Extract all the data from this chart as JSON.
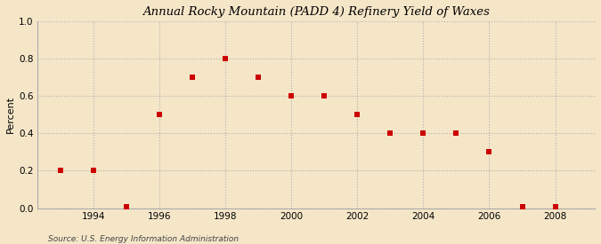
{
  "title": "Annual Rocky Mountain (PADD 4) Refinery Yield of Waxes",
  "ylabel": "Percent",
  "source": "Source: U.S. Energy Information Administration",
  "background_color": "#f5e6c8",
  "plot_background_color": "#f5e6c8",
  "marker_color": "#cc0000",
  "marker_size": 18,
  "xlim": [
    1992.3,
    2009.2
  ],
  "ylim": [
    0.0,
    1.0
  ],
  "yticks": [
    0.0,
    0.2,
    0.4,
    0.6,
    0.8,
    1.0
  ],
  "xticks": [
    1994,
    1996,
    1998,
    2000,
    2002,
    2004,
    2006,
    2008
  ],
  "years": [
    1993,
    1994,
    1995,
    1996,
    1997,
    1998,
    1999,
    2000,
    2001,
    2002,
    2003,
    2004,
    2005,
    2006,
    2007,
    2008
  ],
  "values": [
    0.2,
    0.2,
    0.01,
    0.5,
    0.7,
    0.8,
    0.7,
    0.6,
    0.6,
    0.5,
    0.4,
    0.4,
    0.4,
    0.3,
    0.01,
    0.01
  ]
}
